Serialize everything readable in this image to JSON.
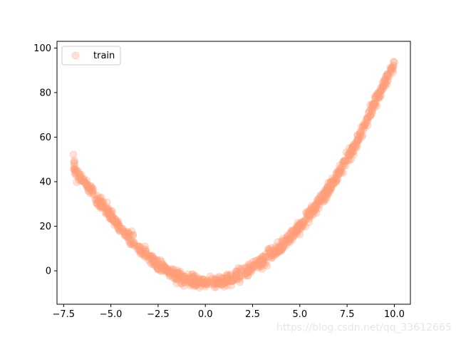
{
  "chart_data": {
    "type": "scatter",
    "title": "",
    "xlabel": "",
    "ylabel": "",
    "xlim": [
      -7.85,
      10.85
    ],
    "ylim": [
      -15,
      103
    ],
    "x_ticks": [
      -7.5,
      -5.0,
      -2.5,
      0.0,
      2.5,
      5.0,
      7.5,
      10.0
    ],
    "x_tick_labels": [
      "−7.5",
      "−5.0",
      "−2.5",
      "0.0",
      "2.5",
      "5.0",
      "7.5",
      "10.0"
    ],
    "y_ticks": [
      0,
      20,
      40,
      60,
      80,
      100
    ],
    "y_tick_labels": [
      "0",
      "20",
      "40",
      "60",
      "80",
      "100"
    ],
    "grid": false,
    "legend": {
      "position": "upper-left",
      "entries": [
        "train"
      ]
    },
    "series": [
      {
        "name": "train",
        "color": "#ffa07a",
        "alpha": 0.3,
        "x_range": [
          -7.0,
          10.0
        ],
        "n_points": 1000,
        "points": [
          [
            -7.0,
            49.0
          ],
          [
            -6.9,
            45.8
          ],
          [
            -6.8,
            44.2
          ],
          [
            -6.6,
            41.8
          ],
          [
            -6.4,
            39.5
          ],
          [
            -6.0,
            35.5
          ],
          [
            -5.6,
            31.0
          ],
          [
            -5.0,
            24.5
          ],
          [
            -4.5,
            19.0
          ],
          [
            -4.0,
            14.5
          ],
          [
            -3.5,
            10.0
          ],
          [
            -3.0,
            6.0
          ],
          [
            -2.5,
            2.5
          ],
          [
            -2.0,
            0.0
          ],
          [
            -1.5,
            -2.5
          ],
          [
            -1.0,
            -4.0
          ],
          [
            -0.5,
            -5.0
          ],
          [
            0.0,
            -5.5
          ],
          [
            0.5,
            -5.3
          ],
          [
            1.0,
            -4.5
          ],
          [
            1.5,
            -3.0
          ],
          [
            2.0,
            -1.0
          ],
          [
            2.5,
            1.5
          ],
          [
            3.0,
            4.5
          ],
          [
            3.5,
            7.5
          ],
          [
            4.0,
            11.0
          ],
          [
            4.5,
            15.5
          ],
          [
            5.0,
            20.0
          ],
          [
            5.5,
            25.0
          ],
          [
            6.0,
            30.5
          ],
          [
            6.5,
            36.5
          ],
          [
            7.0,
            43.0
          ],
          [
            7.5,
            50.0
          ],
          [
            8.0,
            58.0
          ],
          [
            8.5,
            66.5
          ],
          [
            9.0,
            76.0
          ],
          [
            9.5,
            85.0
          ],
          [
            10.0,
            93.0
          ]
        ]
      }
    ]
  }
}
